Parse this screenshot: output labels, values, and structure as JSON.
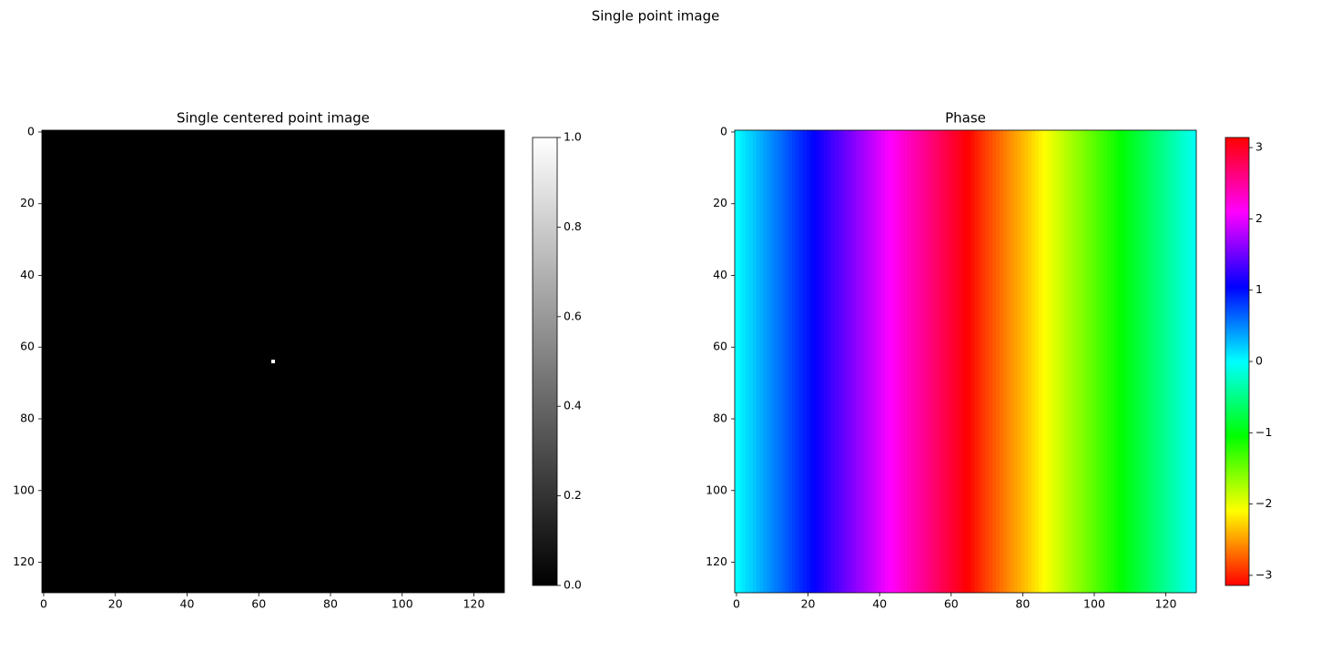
{
  "suptitle": "Single point image",
  "chart_data": [
    {
      "type": "image",
      "title": "Single centered point image",
      "colormap": "gray",
      "xlim": [
        -0.5,
        128.5
      ],
      "ylim": [
        128.5,
        -0.5
      ],
      "xticks": [
        0,
        20,
        40,
        60,
        80,
        100,
        120
      ],
      "yticks": [
        0,
        20,
        40,
        60,
        80,
        100,
        120
      ],
      "background": 0,
      "points": [
        {
          "x": 64,
          "y": 64,
          "value": 1
        }
      ],
      "clim": [
        0,
        1
      ],
      "cticks": [
        {
          "value": 0,
          "label": "0.0"
        },
        0.2,
        0.4,
        0.6,
        0.8,
        {
          "value": 1,
          "label": "1.0"
        }
      ]
    },
    {
      "type": "columns",
      "title": "Phase",
      "colormap": "hsv",
      "xlim": [
        -0.5,
        128.5
      ],
      "ylim": [
        128.5,
        -0.5
      ],
      "xticks": [
        0,
        20,
        40,
        60,
        80,
        100,
        120
      ],
      "yticks": [
        0,
        20,
        40,
        60,
        80,
        100,
        120
      ],
      "values": [
        0.0,
        0.05,
        0.1,
        0.15,
        0.19,
        0.24,
        0.29,
        0.34,
        0.39,
        0.44,
        0.49,
        0.54,
        0.58,
        0.63,
        0.68,
        0.73,
        0.78,
        0.83,
        0.88,
        0.93,
        0.97,
        1.02,
        1.07,
        1.12,
        1.17,
        1.22,
        1.27,
        1.32,
        1.36,
        1.41,
        1.46,
        1.51,
        1.56,
        1.61,
        1.66,
        1.7,
        1.75,
        1.8,
        1.85,
        1.9,
        1.95,
        2.0,
        2.05,
        2.09,
        2.14,
        2.19,
        2.24,
        2.29,
        2.34,
        2.39,
        2.44,
        2.48,
        2.53,
        2.58,
        2.63,
        2.68,
        2.73,
        2.78,
        2.83,
        2.87,
        2.92,
        2.97,
        3.02,
        3.07,
        3.12,
        -3.12,
        -3.07,
        -3.02,
        -2.97,
        -2.92,
        -2.87,
        -2.83,
        -2.78,
        -2.73,
        -2.68,
        -2.63,
        -2.58,
        -2.53,
        -2.48,
        -2.44,
        -2.39,
        -2.34,
        -2.29,
        -2.24,
        -2.19,
        -2.14,
        -2.09,
        -2.05,
        -2.0,
        -1.95,
        -1.9,
        -1.85,
        -1.8,
        -1.75,
        -1.7,
        -1.66,
        -1.61,
        -1.56,
        -1.51,
        -1.46,
        -1.41,
        -1.36,
        -1.32,
        -1.27,
        -1.22,
        -1.17,
        -1.12,
        -1.07,
        -1.02,
        -0.97,
        -0.93,
        -0.88,
        -0.83,
        -0.78,
        -0.73,
        -0.68,
        -0.63,
        -0.58,
        -0.54,
        -0.49,
        -0.44,
        -0.39,
        -0.34,
        -0.29,
        -0.24,
        -0.19,
        -0.15,
        -0.1,
        -0.05
      ],
      "clim": [
        -3.14159,
        3.14159
      ],
      "cticks": [
        {
          "value": -3,
          "label": "−3"
        },
        {
          "value": -2,
          "label": "−2"
        },
        {
          "value": -1,
          "label": "−1"
        },
        0,
        1,
        2,
        3
      ]
    }
  ]
}
